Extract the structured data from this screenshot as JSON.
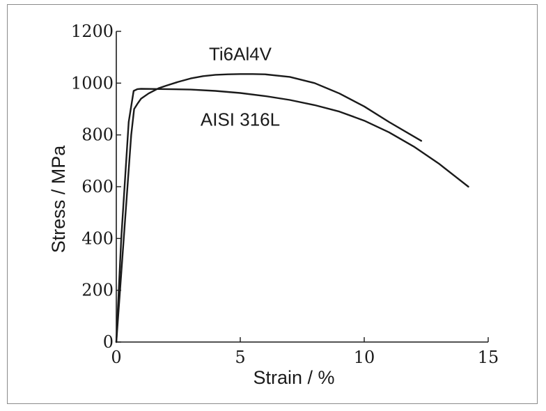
{
  "chart_data": {
    "type": "line",
    "title": "",
    "xlabel": "Strain / %",
    "ylabel": "Stress  / MPa",
    "xlim": [
      0,
      15
    ],
    "ylim": [
      0,
      1200
    ],
    "xticks": [
      0,
      5,
      10,
      15
    ],
    "yticks": [
      0,
      200,
      400,
      600,
      800,
      1000,
      1200
    ],
    "xtick_labels": [
      "0",
      "5",
      "10",
      "15"
    ],
    "ytick_labels": [
      "0",
      "200",
      "400",
      "600",
      "800",
      "1000",
      "1200"
    ],
    "grid": false,
    "series": [
      {
        "name": "Ti6Al4V",
        "color": "#1a1a1a",
        "x": [
          0,
          0.3,
          0.6,
          0.72,
          0.85,
          1.0,
          1.3,
          1.7,
          2.0,
          2.5,
          3.0,
          3.5,
          4.0,
          4.5,
          5.0,
          5.5,
          6.0,
          7.0,
          8.0,
          9.0,
          10.0,
          11.0,
          12.3
        ],
        "y": [
          0,
          400,
          800,
          900,
          920,
          940,
          960,
          980,
          990,
          1005,
          1018,
          1027,
          1032,
          1034,
          1035,
          1035,
          1034,
          1024,
          1000,
          960,
          910,
          850,
          777
        ]
      },
      {
        "name": "AISI 316L",
        "color": "#1a1a1a",
        "x": [
          0,
          0.2,
          0.5,
          0.7,
          0.85,
          1.0,
          2.0,
          3.0,
          4.0,
          5.0,
          6.0,
          7.0,
          8.0,
          9.0,
          10.0,
          11.0,
          12.0,
          13.0,
          14.2
        ],
        "y": [
          0,
          400,
          850,
          970,
          977,
          978,
          977,
          975,
          970,
          962,
          950,
          935,
          915,
          890,
          855,
          810,
          755,
          690,
          600
        ]
      }
    ]
  }
}
